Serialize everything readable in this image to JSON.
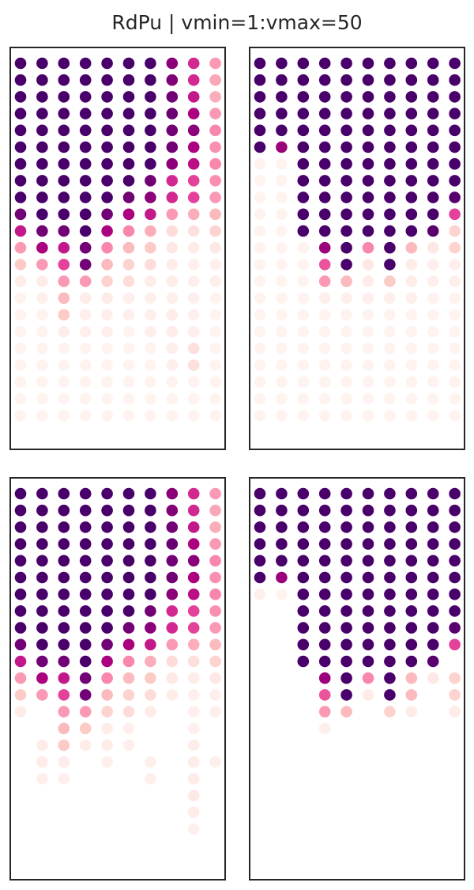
{
  "title": "RdPu | vmin=1:vmax=50",
  "chart_data": [
    {
      "type": "scatter",
      "panel": "top-left",
      "vmin": 1,
      "vmax": 50,
      "colormap": "RdPu",
      "grid": false,
      "columns": 10,
      "values": [
        [
          50,
          50,
          50,
          50,
          50,
          50,
          50,
          42,
          33,
          20
        ],
        [
          50,
          50,
          50,
          50,
          50,
          50,
          50,
          43,
          33,
          18
        ],
        [
          50,
          50,
          50,
          50,
          50,
          50,
          50,
          45,
          35,
          17
        ],
        [
          50,
          50,
          50,
          50,
          50,
          50,
          50,
          46,
          38,
          20
        ],
        [
          50,
          50,
          50,
          50,
          50,
          50,
          50,
          45,
          42,
          22
        ],
        [
          50,
          50,
          50,
          50,
          50,
          50,
          50,
          45,
          38,
          21
        ],
        [
          50,
          50,
          50,
          50,
          50,
          50,
          50,
          42,
          36,
          22
        ],
        [
          50,
          50,
          50,
          50,
          50,
          50,
          45,
          33,
          30,
          21
        ],
        [
          50,
          50,
          50,
          50,
          50,
          45,
          42,
          33,
          30,
          20
        ],
        [
          45,
          50,
          50,
          50,
          45,
          38,
          35,
          20,
          17,
          15
        ],
        [
          35,
          45,
          45,
          50,
          38,
          22,
          17,
          8,
          7,
          10
        ],
        [
          20,
          38,
          35,
          45,
          22,
          15,
          12,
          5,
          4,
          5
        ],
        [
          12,
          20,
          30,
          45,
          15,
          10,
          8,
          4,
          3,
          3
        ],
        [
          4,
          4,
          20,
          20,
          10,
          8,
          4,
          4,
          3,
          3
        ],
        [
          2,
          3,
          15,
          4,
          4,
          3,
          3,
          3,
          3,
          2
        ],
        [
          2,
          2,
          12,
          3,
          3,
          3,
          3,
          4,
          3,
          2
        ],
        [
          2,
          2,
          4,
          3,
          3,
          2,
          3,
          4,
          3,
          2
        ],
        [
          2,
          2,
          2,
          2,
          2,
          2,
          2,
          3,
          7,
          2
        ],
        [
          2,
          2,
          2,
          2,
          2,
          2,
          2,
          3,
          7,
          2
        ],
        [
          2,
          2,
          2,
          2,
          2,
          2,
          2,
          2,
          2,
          2
        ],
        [
          2,
          2,
          2,
          2,
          2,
          2,
          2,
          2,
          2,
          2
        ],
        [
          2,
          2,
          2,
          2,
          2,
          2,
          2,
          2,
          2,
          2
        ]
      ]
    },
    {
      "type": "scatter",
      "panel": "top-right",
      "vmin": 1,
      "vmax": 50,
      "colormap": "RdPu",
      "grid": false,
      "columns": 10,
      "values": [
        [
          50,
          50,
          50,
          50,
          50,
          50,
          50,
          50,
          50,
          50
        ],
        [
          50,
          50,
          50,
          50,
          50,
          50,
          50,
          50,
          50,
          50
        ],
        [
          50,
          50,
          50,
          50,
          50,
          50,
          50,
          50,
          50,
          50
        ],
        [
          50,
          50,
          50,
          50,
          50,
          50,
          50,
          50,
          50,
          50
        ],
        [
          50,
          50,
          50,
          50,
          50,
          50,
          50,
          50,
          50,
          50
        ],
        [
          50,
          40,
          50,
          50,
          50,
          50,
          50,
          50,
          50,
          50
        ],
        [
          2,
          2,
          50,
          50,
          50,
          50,
          50,
          50,
          50,
          50
        ],
        [
          2,
          2,
          50,
          50,
          50,
          50,
          50,
          50,
          50,
          50
        ],
        [
          2,
          2,
          50,
          50,
          50,
          50,
          50,
          50,
          50,
          48
        ],
        [
          2,
          2,
          50,
          50,
          50,
          50,
          50,
          50,
          50,
          30
        ],
        [
          2,
          2,
          50,
          50,
          50,
          50,
          50,
          50,
          48,
          10
        ],
        [
          2,
          2,
          2,
          40,
          50,
          22,
          50,
          15,
          5,
          10
        ],
        [
          2,
          2,
          2,
          28,
          50,
          5,
          50,
          4,
          3,
          3
        ],
        [
          2,
          2,
          2,
          20,
          15,
          4,
          12,
          4,
          3,
          3
        ],
        [
          2,
          2,
          2,
          3,
          3,
          3,
          3,
          3,
          2,
          2
        ],
        [
          2,
          2,
          2,
          2,
          2,
          2,
          2,
          2,
          2,
          2
        ],
        [
          2,
          2,
          2,
          2,
          2,
          2,
          2,
          2,
          2,
          2
        ],
        [
          2,
          2,
          2,
          2,
          2,
          2,
          2,
          2,
          2,
          2
        ],
        [
          2,
          2,
          2,
          2,
          2,
          2,
          2,
          2,
          2,
          2
        ],
        [
          2,
          2,
          2,
          2,
          2,
          2,
          2,
          2,
          2,
          2
        ],
        [
          2,
          2,
          2,
          2,
          2,
          2,
          2,
          2,
          2,
          2
        ],
        [
          2,
          2,
          2,
          2,
          2,
          2,
          2,
          2,
          2,
          2
        ]
      ]
    },
    {
      "type": "scatter",
      "panel": "bottom-left",
      "vmin": 1,
      "vmax": 50,
      "colormap": "RdPu",
      "grid": false,
      "columns": 10,
      "values": [
        [
          50,
          50,
          50,
          50,
          50,
          50,
          50,
          42,
          33,
          20
        ],
        [
          50,
          50,
          50,
          50,
          50,
          50,
          50,
          43,
          33,
          18
        ],
        [
          50,
          50,
          50,
          50,
          50,
          50,
          50,
          45,
          35,
          17
        ],
        [
          50,
          50,
          50,
          50,
          50,
          50,
          50,
          46,
          38,
          20
        ],
        [
          50,
          50,
          50,
          50,
          50,
          50,
          50,
          45,
          42,
          22
        ],
        [
          50,
          50,
          50,
          50,
          50,
          50,
          50,
          45,
          38,
          21
        ],
        [
          50,
          50,
          50,
          50,
          50,
          50,
          50,
          42,
          36,
          22
        ],
        [
          50,
          50,
          50,
          50,
          50,
          50,
          45,
          33,
          30,
          21
        ],
        [
          50,
          50,
          50,
          50,
          50,
          45,
          42,
          33,
          30,
          20
        ],
        [
          45,
          50,
          50,
          50,
          45,
          38,
          35,
          20,
          17,
          15
        ],
        [
          35,
          45,
          45,
          50,
          38,
          22,
          17,
          8,
          7,
          10
        ],
        [
          20,
          38,
          35,
          45,
          22,
          15,
          12,
          5,
          4,
          5
        ],
        [
          12,
          20,
          30,
          45,
          15,
          10,
          8,
          4,
          3,
          3
        ],
        [
          4,
          null,
          20,
          20,
          10,
          8,
          4,
          null,
          3,
          3
        ],
        [
          null,
          null,
          15,
          12,
          4,
          3,
          null,
          null,
          3,
          null
        ],
        [
          null,
          4,
          12,
          4,
          4,
          3,
          null,
          null,
          4,
          null
        ],
        [
          null,
          4,
          4,
          null,
          3,
          null,
          3,
          null,
          4,
          3
        ],
        [
          null,
          3,
          3,
          null,
          null,
          null,
          3,
          null,
          4,
          null
        ],
        [
          null,
          null,
          null,
          null,
          null,
          null,
          null,
          null,
          5,
          null
        ],
        [
          null,
          null,
          null,
          null,
          null,
          null,
          null,
          null,
          4,
          null
        ],
        [
          null,
          null,
          null,
          null,
          null,
          null,
          null,
          null,
          3,
          null
        ],
        [
          null,
          null,
          null,
          null,
          null,
          null,
          null,
          null,
          null,
          null
        ]
      ]
    },
    {
      "type": "scatter",
      "panel": "bottom-right",
      "vmin": 1,
      "vmax": 50,
      "colormap": "RdPu",
      "grid": false,
      "columns": 10,
      "values": [
        [
          50,
          50,
          50,
          50,
          50,
          50,
          50,
          50,
          50,
          50
        ],
        [
          50,
          50,
          50,
          50,
          50,
          50,
          50,
          50,
          50,
          50
        ],
        [
          50,
          50,
          50,
          50,
          50,
          50,
          50,
          50,
          50,
          50
        ],
        [
          50,
          50,
          50,
          50,
          50,
          50,
          50,
          50,
          50,
          50
        ],
        [
          50,
          50,
          50,
          50,
          50,
          50,
          50,
          50,
          50,
          50
        ],
        [
          50,
          40,
          50,
          50,
          50,
          50,
          50,
          50,
          50,
          50
        ],
        [
          3,
          2,
          50,
          50,
          50,
          50,
          50,
          50,
          50,
          50
        ],
        [
          null,
          null,
          50,
          50,
          50,
          50,
          50,
          50,
          50,
          50
        ],
        [
          null,
          null,
          50,
          50,
          50,
          50,
          50,
          50,
          50,
          48
        ],
        [
          null,
          null,
          50,
          50,
          50,
          50,
          50,
          50,
          50,
          30
        ],
        [
          null,
          null,
          50,
          50,
          50,
          50,
          50,
          50,
          48,
          null
        ],
        [
          null,
          null,
          null,
          40,
          50,
          22,
          50,
          15,
          5,
          10
        ],
        [
          null,
          null,
          null,
          28,
          50,
          4,
          50,
          15,
          null,
          10
        ],
        [
          null,
          null,
          null,
          20,
          15,
          null,
          10,
          4,
          null,
          4
        ],
        [
          null,
          null,
          null,
          3,
          null,
          null,
          null,
          null,
          null,
          null
        ],
        [
          null,
          null,
          null,
          null,
          null,
          null,
          null,
          null,
          null,
          null
        ],
        [
          null,
          null,
          null,
          null,
          null,
          null,
          null,
          null,
          null,
          null
        ],
        [
          null,
          null,
          null,
          null,
          null,
          null,
          null,
          null,
          null,
          null
        ],
        [
          null,
          null,
          null,
          null,
          null,
          null,
          null,
          null,
          null,
          null
        ],
        [
          null,
          null,
          null,
          null,
          null,
          null,
          null,
          null,
          null,
          null
        ],
        [
          null,
          null,
          null,
          null,
          null,
          null,
          null,
          null,
          null,
          null
        ],
        [
          null,
          null,
          null,
          null,
          null,
          null,
          null,
          null,
          null,
          null
        ]
      ]
    }
  ]
}
